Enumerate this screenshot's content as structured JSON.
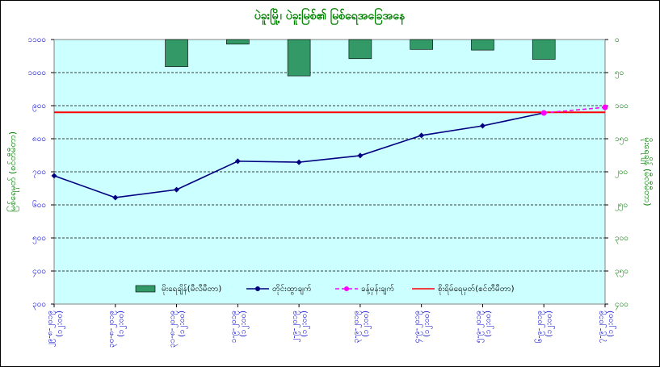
{
  "chart_data": {
    "type": "combo",
    "title": "ပဲခူးမြို့၊ ပဲခူးမြစ်၏ မြစ်ရေအခြေအနေ",
    "y_label": "မြစ်ရေမှတ် (စင်တီမီတာ)",
    "y2_label": "မိုးရေချိန် (မီလီမီတာ)",
    "categories": [
      "၂၉-၈-၂၀၁၉ (၁၂:၀၀)",
      "၃၀-၈-၂၀၁၉ (၁၂:၀၀)",
      "၃၁-၈-၂၀၁၉ (၁၂:၀၀)",
      "၁-၉-၂၀၁၉ (၁၂:၀၀)",
      "၂-၉-၂၀၁၉ (၁၂:၀၀)",
      "၃-၉-၂၀၁၉ (၁၂:၀၀)",
      "၄-၉-၂၀၁၉ (၁၂:၀၀)",
      "၅-၉-၂၀၁၉ (၁၂:၀၀)",
      "၆-၉-၂၀၁၉ (၁၂:၀၀)",
      "၇-၉-၂၀၁၉ (၁၂:၀၀)"
    ],
    "ylim": [
      300,
      1100
    ],
    "yticks": [
      {
        "value": 300,
        "label": "၃၀၀"
      },
      {
        "value": 400,
        "label": "၄၀၀"
      },
      {
        "value": 500,
        "label": "၅၀၀"
      },
      {
        "value": 600,
        "label": "၆၀၀"
      },
      {
        "value": 700,
        "label": "၇၀၀"
      },
      {
        "value": 800,
        "label": "၈၀၀"
      },
      {
        "value": 900,
        "label": "၉၀၀"
      },
      {
        "value": 1000,
        "label": "၁၀၀၀"
      },
      {
        "value": 1100,
        "label": "၁၁၀၀"
      }
    ],
    "y2lim": [
      400,
      0
    ],
    "y2ticks": [
      {
        "value": 0,
        "label": "၀"
      },
      {
        "value": 50,
        "label": "၅၀"
      },
      {
        "value": 100,
        "label": "၁၀၀"
      },
      {
        "value": 150,
        "label": "၁၅၀"
      },
      {
        "value": 200,
        "label": "၂၀၀"
      },
      {
        "value": 250,
        "label": "၂၅၀"
      },
      {
        "value": 300,
        "label": "၃၀၀"
      },
      {
        "value": 350,
        "label": "၃၅၀"
      },
      {
        "value": 400,
        "label": "၄၀၀"
      }
    ],
    "grid": true,
    "series": [
      {
        "name": "မိုးရေချိန်(မီလီမီတာ)",
        "type": "bar",
        "axis": "y2",
        "color": "#339966",
        "values": [
          null,
          null,
          41,
          7,
          55,
          29,
          15,
          16,
          30,
          null
        ]
      },
      {
        "name": "တိုင်းထွာချက်",
        "type": "line",
        "color": "#000080",
        "dashed": false,
        "values": [
          688,
          622,
          646,
          732,
          729,
          749,
          810,
          839,
          878,
          null
        ]
      },
      {
        "name": "ခန့်မှန်းချက်",
        "type": "line",
        "color": "#ff00ff",
        "dashed": true,
        "values": [
          null,
          null,
          null,
          null,
          null,
          null,
          null,
          null,
          878,
          895
        ]
      }
    ],
    "hlines": [
      {
        "name": "စိုးရိမ်ရေမှတ်(စင်တီမီတာ)",
        "color": "#ff0000",
        "value": 880
      }
    ]
  }
}
